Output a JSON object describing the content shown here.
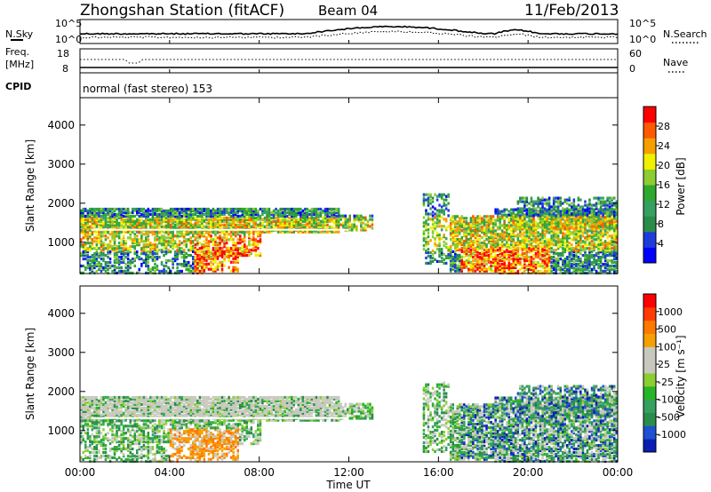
{
  "header": {
    "station": "Zhongshan Station (fitACF)",
    "beam": "Beam 04",
    "date": "11/Feb/2013"
  },
  "top_panels": {
    "nsky_label": "N.Sky",
    "nsearch_label": "N.Search",
    "freq_label": "Freq.",
    "freq_unit": "[MHz]",
    "nave_label": "Nave",
    "cpid_label": "CPID",
    "cpid_text": "normal (fast stereo) 153",
    "noise_ticks": [
      "10^5",
      "10^0"
    ],
    "freq_ticks": [
      "18",
      "8"
    ],
    "nave_ticks": [
      "60",
      "0"
    ]
  },
  "chart_data": [
    {
      "type": "heatmap",
      "name": "power",
      "xlabel": "Time UT",
      "ylabel": "Slant Range [km]",
      "x_ticks": [
        "00:00",
        "04:00",
        "08:00",
        "12:00",
        "16:00",
        "20:00",
        "00:00"
      ],
      "y_ticks": [
        1000,
        2000,
        3000,
        4000
      ],
      "ylim": [
        200,
        4700
      ],
      "xlim_hours": [
        0,
        24
      ],
      "colorbar_label": "Power [dB]",
      "colorbar_ticks": [
        "28",
        "24",
        "20",
        "16",
        "12",
        "8",
        "4"
      ],
      "colors": [
        "#0000ff",
        "#1e3cdc",
        "#2a8c4a",
        "#36a060",
        "#2ea82e",
        "#8ccd32",
        "#f0f000",
        "#f5a000",
        "#ff5a00",
        "#ff0000"
      ]
    },
    {
      "type": "heatmap",
      "name": "velocity",
      "xlabel": "Time UT",
      "ylabel": "Slant Range [km]",
      "x_ticks": [
        "00:00",
        "04:00",
        "08:00",
        "12:00",
        "16:00",
        "20:00",
        "00:00"
      ],
      "y_ticks": [
        1000,
        2000,
        3000,
        4000
      ],
      "ylim": [
        200,
        4700
      ],
      "xlim_hours": [
        0,
        24
      ],
      "colorbar_label": "Velocity [m s⁻¹]",
      "colorbar_ticks": [
        "1000",
        "500",
        "100",
        "25",
        "-25",
        "-100",
        "-500",
        "-1000"
      ],
      "colors": [
        "#0a1eb4",
        "#1e50d2",
        "#2a8c4a",
        "#36a060",
        "#28b428",
        "#8ccd32",
        "#c8c8be",
        "#c8c8be",
        "#f5a000",
        "#ff7800",
        "#ff3c00",
        "#ff0000"
      ]
    }
  ]
}
